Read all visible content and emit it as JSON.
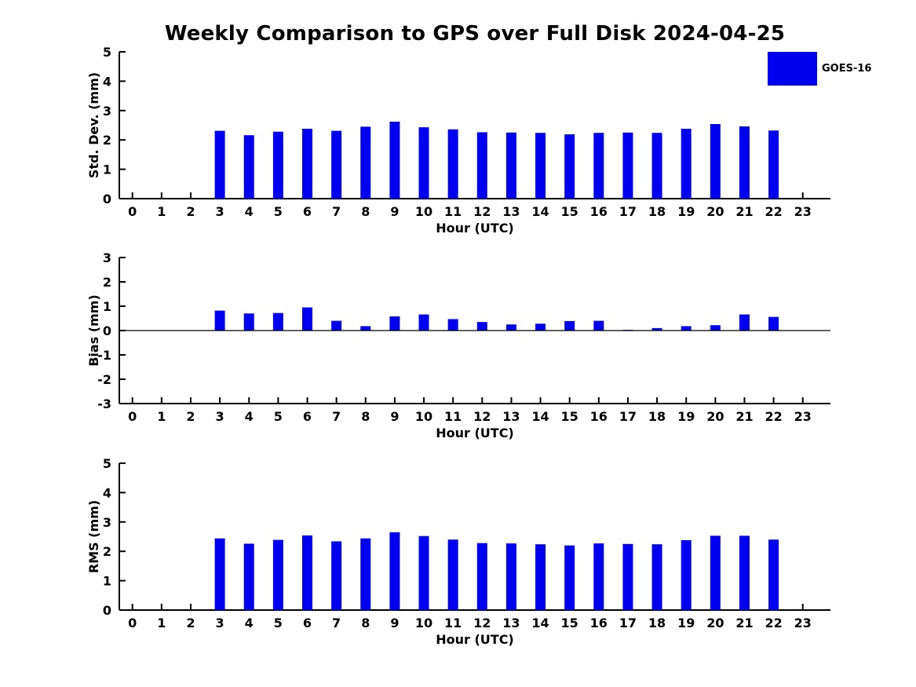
{
  "page_title": "Weekly Comparison to GPS over Full Disk 2024-04-25",
  "legend": {
    "label": "GOES-16",
    "color": "#0000EE"
  },
  "chart_data": [
    {
      "type": "bar",
      "name": "std-dev",
      "series_name": "GOES-16",
      "ylabel": "Std. Dev. (mm)",
      "xlabel": "Hour (UTC)",
      "ylim": [
        0,
        5
      ],
      "yticks": [
        0,
        1,
        2,
        3,
        4,
        5
      ],
      "grid": false,
      "legend_position": "top-right",
      "bar_color": "#0000EE",
      "zero_line": false,
      "categories": [
        "0",
        "1",
        "2",
        "3",
        "4",
        "5",
        "6",
        "7",
        "8",
        "9",
        "10",
        "11",
        "12",
        "13",
        "14",
        "15",
        "16",
        "17",
        "18",
        "19",
        "20",
        "21",
        "22",
        "23"
      ],
      "values": [
        null,
        null,
        null,
        2.31,
        2.16,
        2.28,
        2.38,
        2.31,
        2.45,
        2.62,
        2.43,
        2.36,
        2.26,
        2.25,
        2.24,
        2.19,
        2.24,
        2.25,
        2.24,
        2.38,
        2.54,
        2.46,
        2.32,
        null
      ]
    },
    {
      "type": "bar",
      "name": "bias",
      "series_name": "GOES-16",
      "ylabel": "Bias (mm)",
      "xlabel": "Hour (UTC)",
      "ylim": [
        -3,
        3
      ],
      "yticks": [
        -3,
        -2,
        -1,
        0,
        1,
        2,
        3
      ],
      "grid": false,
      "bar_color": "#0000EE",
      "zero_line": true,
      "categories": [
        "0",
        "1",
        "2",
        "3",
        "4",
        "5",
        "6",
        "7",
        "8",
        "9",
        "10",
        "11",
        "12",
        "13",
        "14",
        "15",
        "16",
        "17",
        "18",
        "19",
        "20",
        "21",
        "22",
        "23"
      ],
      "values": [
        null,
        null,
        null,
        0.82,
        0.7,
        0.72,
        0.95,
        0.4,
        0.18,
        0.58,
        0.66,
        0.47,
        0.35,
        0.25,
        0.28,
        0.39,
        0.4,
        0.03,
        0.1,
        0.18,
        0.22,
        0.66,
        0.56,
        null
      ]
    },
    {
      "type": "bar",
      "name": "rms",
      "series_name": "GOES-16",
      "ylabel": "RMS (mm)",
      "xlabel": "Hour (UTC)",
      "ylim": [
        0,
        5
      ],
      "yticks": [
        0,
        1,
        2,
        3,
        4,
        5
      ],
      "grid": false,
      "bar_color": "#0000EE",
      "zero_line": false,
      "categories": [
        "0",
        "1",
        "2",
        "3",
        "4",
        "5",
        "6",
        "7",
        "8",
        "9",
        "10",
        "11",
        "12",
        "13",
        "14",
        "15",
        "16",
        "17",
        "18",
        "19",
        "20",
        "21",
        "22",
        "23"
      ],
      "values": [
        null,
        null,
        null,
        2.44,
        2.26,
        2.39,
        2.54,
        2.34,
        2.44,
        2.65,
        2.52,
        2.4,
        2.28,
        2.27,
        2.24,
        2.2,
        2.27,
        2.25,
        2.24,
        2.38,
        2.53,
        2.53,
        2.4,
        null
      ]
    }
  ]
}
